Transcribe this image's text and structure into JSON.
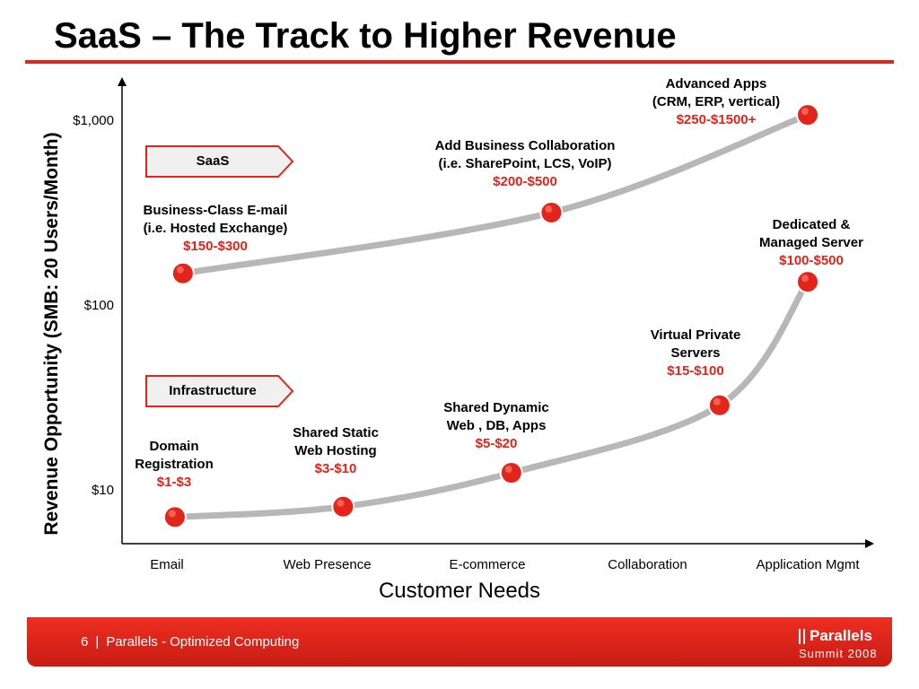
{
  "slide": {
    "title": "SaaS – The Track to Higher Revenue"
  },
  "colors": {
    "accent": "#e2241b",
    "curve": "#b7b7b7",
    "marker": "#e2241b"
  },
  "chart_data": {
    "type": "line",
    "xlabel": "Customer Needs",
    "ylabel": "Revenue Opportunity (SMB: 20 Users/Month)",
    "y_scale": "log",
    "ylim": [
      4.5,
      2000
    ],
    "yticks": [
      {
        "label": "$1,000",
        "value": 1000
      },
      {
        "label": "$100",
        "value": 100
      },
      {
        "label": "$10",
        "value": 10
      }
    ],
    "categories": [
      "Email",
      "Web Presence",
      "E-commerce",
      "Collaboration",
      "Application Mgmt"
    ],
    "grid": false,
    "legend": "none",
    "series": [
      {
        "group": "SaaS",
        "points": [
          {
            "x": 0.1,
            "y": 150,
            "title": "Business-Class E-mail",
            "subtitle": "(i.e. Hosted Exchange)",
            "price": "$150-$300"
          },
          {
            "x": 2.4,
            "y": 320,
            "title": "Add Business Collaboration",
            "subtitle": "(i.e. SharePoint, LCS, VoIP)",
            "price": "$200-$500"
          },
          {
            "x": 4.0,
            "y": 1080,
            "title": "Advanced Apps",
            "subtitle": "(CRM, ERP, vertical)",
            "price": "$250-$1500+"
          }
        ]
      },
      {
        "group": "Infrastructure",
        "points": [
          {
            "x": 0.05,
            "y": 7.2,
            "title": "Domain",
            "subtitle": "Registration",
            "price": "$1-$3"
          },
          {
            "x": 1.1,
            "y": 8.2,
            "title": "Shared Static",
            "subtitle": "Web Hosting",
            "price": "$3-$10"
          },
          {
            "x": 2.15,
            "y": 12.5,
            "title": "Shared Dynamic",
            "subtitle": "Web , DB, Apps",
            "price": "$5-$20"
          },
          {
            "x": 3.45,
            "y": 29,
            "title": "Virtual Private",
            "subtitle": "Servers",
            "price": "$15-$100"
          },
          {
            "x": 4.0,
            "y": 135,
            "title": "Dedicated &",
            "subtitle": "Managed Server",
            "price": "$100-$500"
          }
        ]
      }
    ]
  },
  "footer": {
    "page": "6",
    "separator": "|",
    "text": "Parallels - Optimized Computing"
  },
  "logo": {
    "name": "Parallels",
    "event": "Summit 2008"
  }
}
